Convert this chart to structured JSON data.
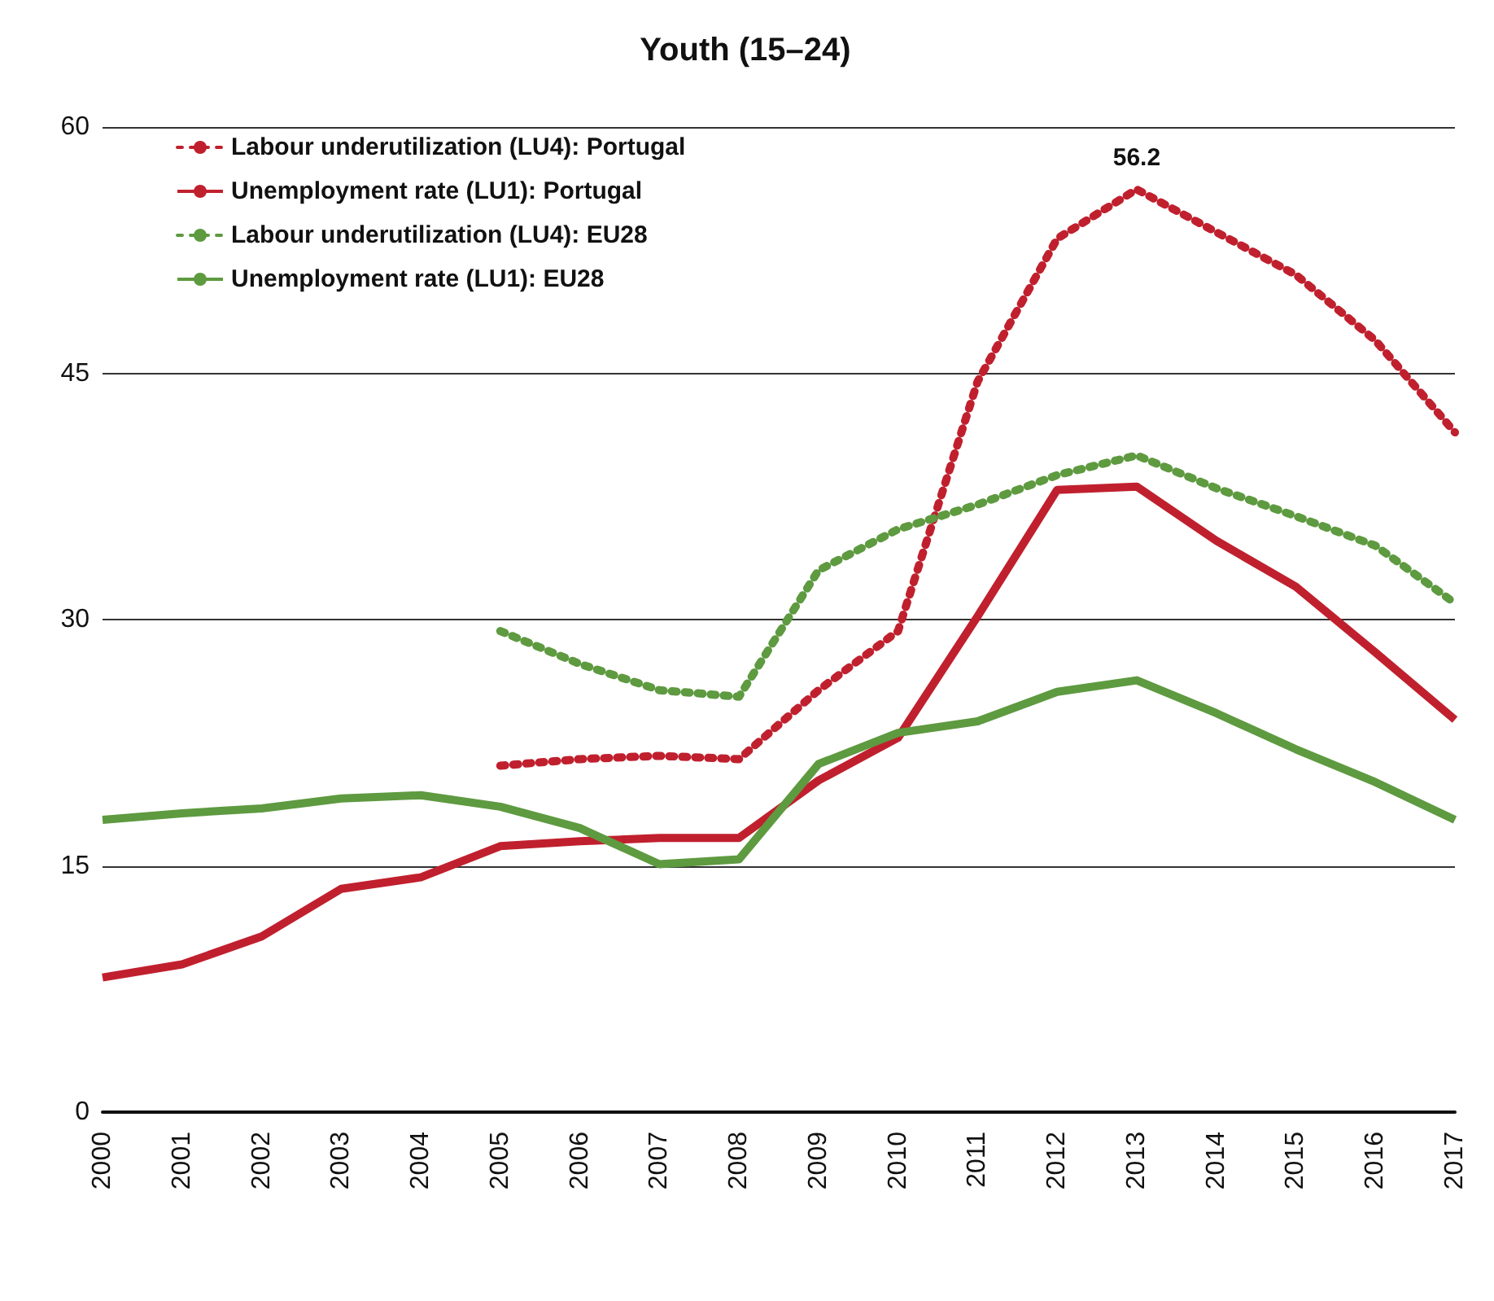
{
  "chart_data": {
    "type": "line",
    "title": "Youth (15–24)",
    "categories": [
      "2000",
      "2001",
      "2002",
      "2003",
      "2004",
      "2005",
      "2006",
      "2007",
      "2008",
      "2009",
      "2010",
      "2011",
      "2012",
      "2013",
      "2014",
      "2015",
      "2016",
      "2017"
    ],
    "series": [
      {
        "name": "Labour underutilization (LU4): Portugal",
        "color": "#c0202e",
        "line_style": "dotted",
        "values": [
          null,
          null,
          null,
          null,
          null,
          21.1,
          21.5,
          21.7,
          21.5,
          25.7,
          29.3,
          44.5,
          53.2,
          56.2,
          53.6,
          51.0,
          47.0,
          41.4
        ]
      },
      {
        "name": "Unemployment rate (LU1): Portugal",
        "color": "#c0202e",
        "line_style": "solid",
        "values": [
          8.2,
          9.0,
          10.7,
          13.6,
          14.3,
          16.2,
          16.5,
          16.7,
          16.7,
          20.2,
          22.8,
          30.2,
          37.9,
          38.1,
          34.8,
          32.0,
          28.0,
          23.9
        ]
      },
      {
        "name": "Labour underutilization (LU4): EU28",
        "color": "#5e9a40",
        "line_style": "dotted",
        "values": [
          null,
          null,
          null,
          null,
          null,
          29.3,
          27.3,
          25.7,
          25.3,
          33.0,
          35.5,
          37.0,
          38.8,
          40.0,
          38.0,
          36.3,
          34.5,
          31.0
        ]
      },
      {
        "name": "Unemployment rate (LU1): EU28",
        "color": "#5e9a40",
        "line_style": "solid",
        "values": [
          17.8,
          18.2,
          18.5,
          19.1,
          19.3,
          18.6,
          17.3,
          15.1,
          15.4,
          21.2,
          23.1,
          23.8,
          25.6,
          26.3,
          24.3,
          22.1,
          20.1,
          17.8
        ]
      }
    ],
    "ylim": [
      0,
      60
    ],
    "yticks": [
      0,
      15,
      30,
      45,
      60
    ],
    "grid": "y",
    "legend": "top left",
    "marker": "none",
    "annotations": [
      {
        "text": "56.2",
        "x": "2013",
        "y": 56.2
      }
    ]
  }
}
